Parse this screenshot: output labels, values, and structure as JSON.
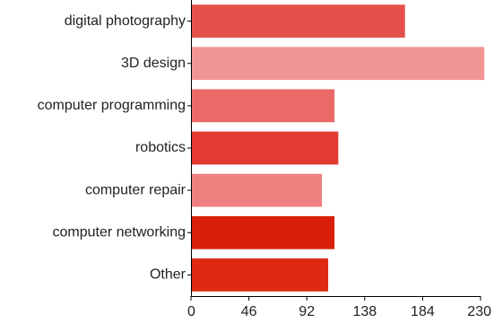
{
  "chart_data": {
    "type": "bar",
    "orientation": "horizontal",
    "categories": [
      "digital photography",
      "3D design",
      "computer programming",
      "robotics",
      "computer repair",
      "computer networking",
      "Other"
    ],
    "values": [
      170,
      233,
      114,
      117,
      104,
      114,
      109
    ],
    "bar_colors": [
      "#e5514a",
      "#f09593",
      "#eb6a67",
      "#e43a31",
      "#ee8080",
      "#d91f0a",
      "#dd2a10"
    ],
    "xlim": [
      0,
      230
    ],
    "xticks": [
      "0",
      "46",
      "92",
      "138",
      "184",
      "230"
    ],
    "grid": false
  }
}
